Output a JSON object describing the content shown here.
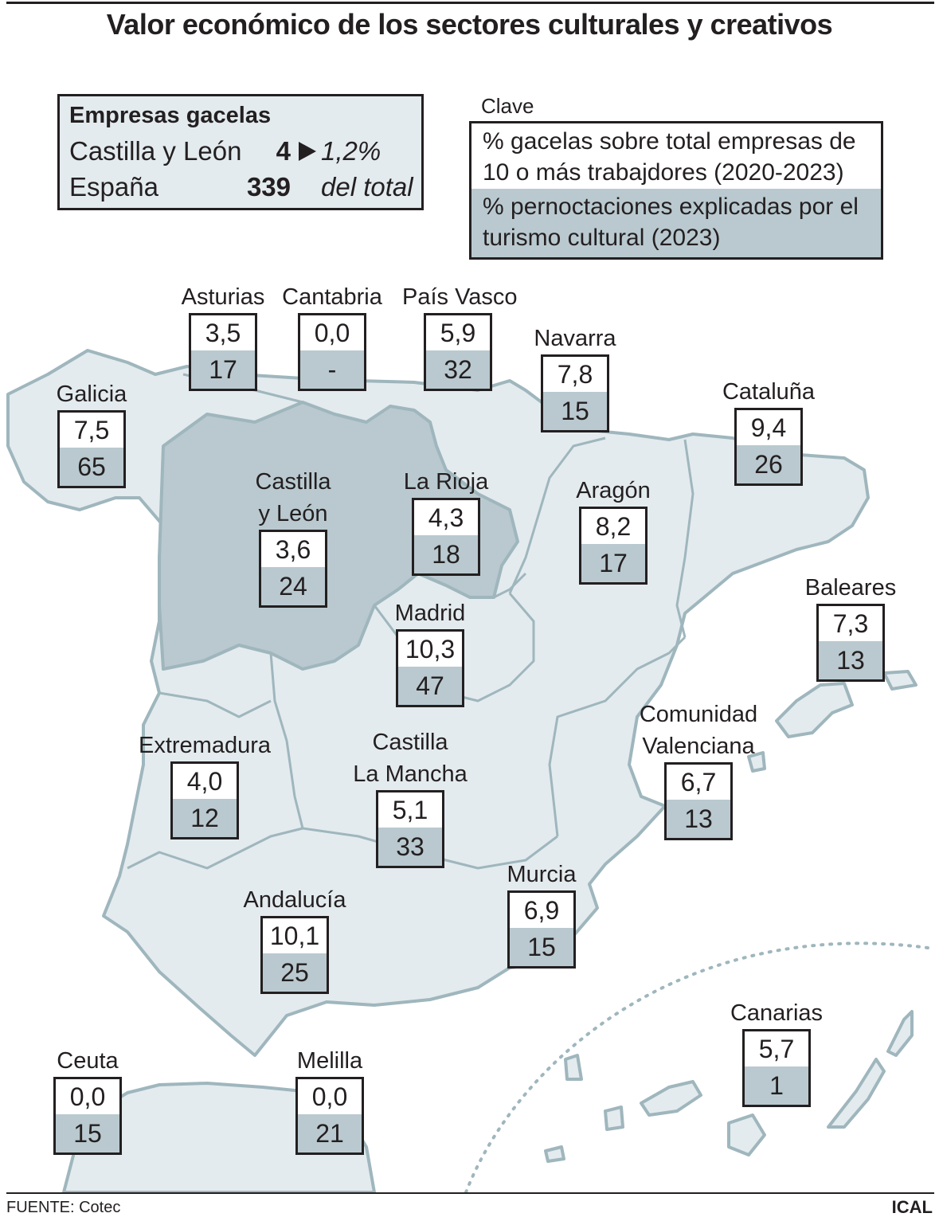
{
  "title": "Valor económico de los sectores culturales y creativos",
  "summary": {
    "heading": "Empresas gacelas",
    "rows": [
      {
        "label": "Castilla y León",
        "value": "4",
        "note": "1,2%"
      },
      {
        "label": "España",
        "value": "339",
        "note": "del total"
      }
    ]
  },
  "key": {
    "label": "Clave",
    "line1": "% gacelas sobre total empresas de 10 o más trabajdores (2020-2023)",
    "line1a": "% gacelas sobre total empresas de",
    "line1b": "10 o más trabajdores (2020-2023)",
    "line2a": "% pernoctaciones explicadas por el",
    "line2b": "turismo cultural (2023)"
  },
  "regions": [
    {
      "id": "asturias",
      "name": "Asturias",
      "gacelas": "3,5",
      "turismo": "17"
    },
    {
      "id": "cantabria",
      "name": "Cantabria",
      "gacelas": "0,0",
      "turismo": "-"
    },
    {
      "id": "pais-vasco",
      "name": "País Vasco",
      "gacelas": "5,9",
      "turismo": "32"
    },
    {
      "id": "navarra",
      "name": "Navarra",
      "gacelas": "7,8",
      "turismo": "15"
    },
    {
      "id": "galicia",
      "name": "Galicia",
      "gacelas": "7,5",
      "turismo": "65"
    },
    {
      "id": "cataluna",
      "name": "Cataluña",
      "gacelas": "9,4",
      "turismo": "26"
    },
    {
      "id": "castilla-leon",
      "name1": "Castilla",
      "name2": "y León",
      "gacelas": "3,6",
      "turismo": "24"
    },
    {
      "id": "la-rioja",
      "name": "La Rioja",
      "gacelas": "4,3",
      "turismo": "18"
    },
    {
      "id": "aragon",
      "name": "Aragón",
      "gacelas": "8,2",
      "turismo": "17"
    },
    {
      "id": "baleares",
      "name": "Baleares",
      "gacelas": "7,3",
      "turismo": "13"
    },
    {
      "id": "madrid",
      "name": "Madrid",
      "gacelas": "10,3",
      "turismo": "47"
    },
    {
      "id": "comunidad-valenciana",
      "name1": "Comunidad",
      "name2": "Valenciana",
      "gacelas": "6,7",
      "turismo": "13"
    },
    {
      "id": "extremadura",
      "name": "Extremadura",
      "gacelas": "4,0",
      "turismo": "12"
    },
    {
      "id": "castilla-la-mancha",
      "name1": "Castilla",
      "name2": "La Mancha",
      "gacelas": "5,1",
      "turismo": "33"
    },
    {
      "id": "murcia",
      "name": "Murcia",
      "gacelas": "6,9",
      "turismo": "15"
    },
    {
      "id": "andalucia",
      "name": "Andalucía",
      "gacelas": "10,1",
      "turismo": "25"
    },
    {
      "id": "canarias",
      "name": "Canarias",
      "gacelas": "5,7",
      "turismo": "1"
    },
    {
      "id": "ceuta",
      "name": "Ceuta",
      "gacelas": "0,0",
      "turismo": "15"
    },
    {
      "id": "melilla",
      "name": "Melilla",
      "gacelas": "0,0",
      "turismo": "21"
    }
  ],
  "colors": {
    "land": "#e3ebee",
    "highlight": "#b9c9cf",
    "border": "#9fb6bd",
    "text": "#231f20"
  },
  "footer": {
    "source": "FUENTE: Cotec",
    "brand": "ICAL"
  }
}
